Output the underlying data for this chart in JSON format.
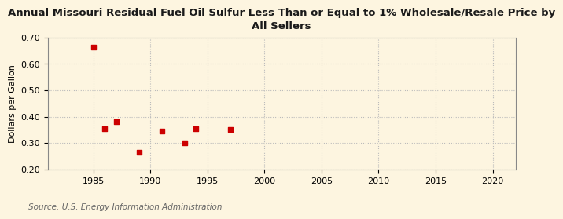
{
  "title": "Annual Missouri Residual Fuel Oil Sulfur Less Than or Equal to 1% Wholesale/Resale Price by\nAll Sellers",
  "ylabel": "Dollars per Gallon",
  "source": "Source: U.S. Energy Information Administration",
  "x_data": [
    1985,
    1986,
    1987,
    1989,
    1991,
    1993,
    1994,
    1997
  ],
  "y_data": [
    0.665,
    0.355,
    0.38,
    0.265,
    0.345,
    0.3,
    0.355,
    0.35
  ],
  "xlim": [
    1981,
    2022
  ],
  "ylim": [
    0.2,
    0.7
  ],
  "xticks": [
    1985,
    1990,
    1995,
    2000,
    2005,
    2010,
    2015,
    2020
  ],
  "yticks": [
    0.2,
    0.3,
    0.4,
    0.5,
    0.6,
    0.7
  ],
  "marker_color": "#cc0000",
  "marker": "s",
  "marker_size": 5,
  "background_color": "#fdf5e0",
  "plot_bg_color": "#fdf5e0",
  "grid_color": "#bbbbbb",
  "title_fontsize": 9.5,
  "label_fontsize": 8,
  "tick_fontsize": 8,
  "source_fontsize": 7.5
}
